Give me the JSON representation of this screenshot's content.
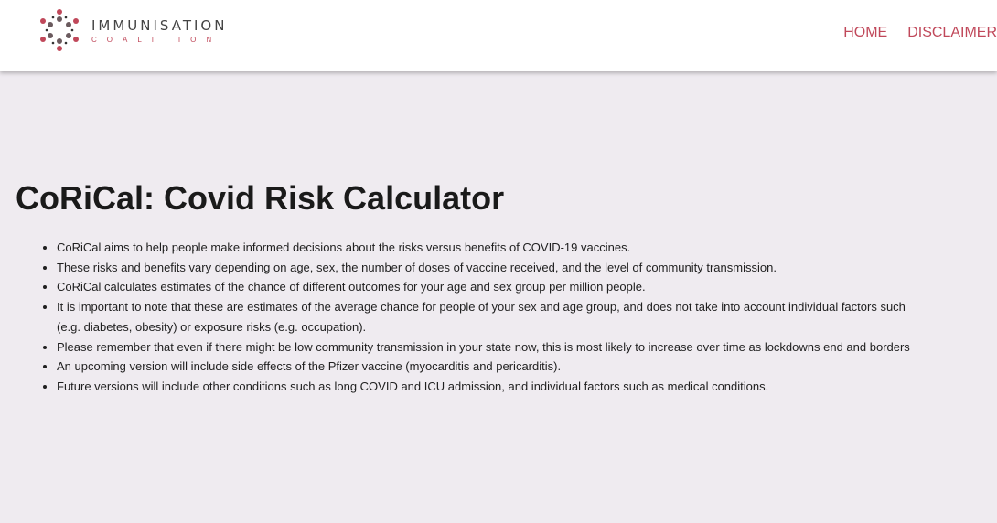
{
  "header": {
    "logo": {
      "line1": "IMMUNISATION",
      "line2": "COALITION"
    },
    "nav": [
      {
        "label": "HOME"
      },
      {
        "label": "DISCLAIMER"
      }
    ],
    "accent_color": "#c0485a"
  },
  "main": {
    "title": "CoRiCal: Covid Risk Calculator",
    "bullets": [
      "CoRiCal aims to help people make informed decisions about the risks versus benefits of COVID-19 vaccines.",
      "These risks and benefits vary depending on age, sex, the number of doses of vaccine received, and the level of community transmission.",
      "CoRiCal calculates estimates of the chance of different outcomes for your age and sex group per million people.",
      "It is important to note that these are estimates of the average chance for people of your sex and age group, and does not take into account individual factors such",
      "(e.g. diabetes, obesity) or exposure risks (e.g. occupation).",
      "Please remember that even if there might be low community transmission in your state now, this is most likely to increase over time as lockdowns end and borders",
      "An upcoming version will include side effects of the Pfizer vaccine (myocarditis and pericarditis).",
      "Future versions will include other conditions such as long COVID and ICU admission, and individual factors such as medical conditions."
    ]
  }
}
